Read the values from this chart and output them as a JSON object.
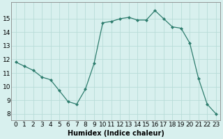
{
  "x": [
    0,
    1,
    2,
    3,
    4,
    5,
    6,
    7,
    8,
    9,
    10,
    11,
    12,
    13,
    14,
    15,
    16,
    17,
    18,
    19,
    20,
    21,
    22,
    23
  ],
  "y": [
    11.8,
    11.5,
    11.2,
    10.7,
    10.5,
    9.7,
    8.9,
    8.7,
    9.8,
    11.7,
    14.7,
    14.8,
    15.0,
    15.1,
    14.9,
    14.9,
    15.6,
    15.0,
    14.4,
    14.3,
    13.2,
    10.6,
    8.7,
    8.0
  ],
  "line_color": "#2e7d6e",
  "marker": "D",
  "marker_size": 2,
  "bg_color": "#d8f0ee",
  "grid_color": "#b8dcd8",
  "xlabel": "Humidex (Indice chaleur)",
  "xlabel_fontsize": 7,
  "ylabel_ticks": [
    8,
    9,
    10,
    11,
    12,
    13,
    14,
    15
  ],
  "xlim": [
    -0.5,
    23.5
  ],
  "ylim": [
    7.5,
    16.2
  ],
  "tick_fontsize": 6.5
}
